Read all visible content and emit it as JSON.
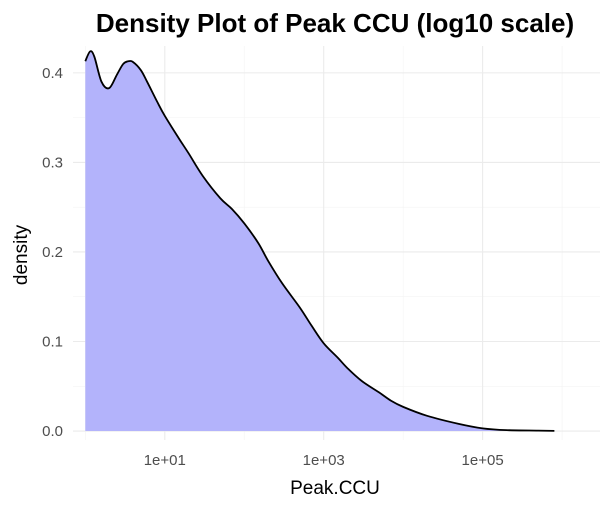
{
  "chart_data": {
    "type": "area",
    "title": "Density Plot of Peak CCU (log10 scale)",
    "xlabel": "Peak.CCU",
    "ylabel": "density",
    "x_scale": "log10",
    "xlim": [
      0.7,
      3000000
    ],
    "ylim": [
      -0.01,
      0.43
    ],
    "x_ticks": [
      {
        "value": 10,
        "label": "1e+01"
      },
      {
        "value": 1000,
        "label": "1e+03"
      },
      {
        "value": 100000,
        "label": "1e+05"
      }
    ],
    "y_ticks": [
      {
        "value": 0.0,
        "label": "0.0"
      },
      {
        "value": 0.1,
        "label": "0.1"
      },
      {
        "value": 0.2,
        "label": "0.2"
      },
      {
        "value": 0.3,
        "label": "0.3"
      },
      {
        "value": 0.4,
        "label": "0.4"
      }
    ],
    "grid": true,
    "fill_color": "#b3b3fb",
    "line_color": "#000000",
    "series": [
      {
        "x": [
          1,
          1.15,
          1.3,
          1.6,
          2,
          2.5,
          3,
          3.5,
          4,
          5,
          6,
          8,
          10,
          15,
          20,
          30,
          50,
          70,
          100,
          150,
          200,
          300,
          500,
          700,
          1000,
          1500,
          2000,
          3000,
          5000,
          7000,
          10000,
          20000,
          50000,
          100000,
          200000,
          500000,
          800000
        ],
        "y": [
          0.413,
          0.424,
          0.418,
          0.39,
          0.383,
          0.398,
          0.41,
          0.413,
          0.412,
          0.403,
          0.39,
          0.368,
          0.352,
          0.327,
          0.31,
          0.285,
          0.26,
          0.248,
          0.232,
          0.21,
          0.19,
          0.165,
          0.138,
          0.118,
          0.098,
          0.082,
          0.07,
          0.056,
          0.043,
          0.034,
          0.027,
          0.017,
          0.008,
          0.003,
          0.001,
          0.0005,
          0.0002
        ]
      }
    ]
  }
}
